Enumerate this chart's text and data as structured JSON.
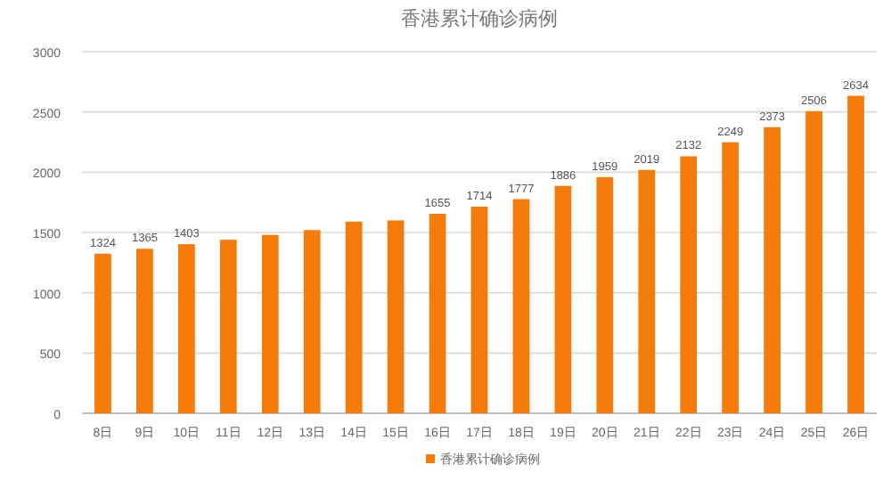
{
  "chart_data": {
    "type": "bar",
    "title": "香港累计确诊病例",
    "categories": [
      "8日",
      "9日",
      "10日",
      "11日",
      "12日",
      "13日",
      "14日",
      "15日",
      "16日",
      "17日",
      "18日",
      "19日",
      "20日",
      "21日",
      "22日",
      "23日",
      "24日",
      "25日",
      "26日"
    ],
    "series": [
      {
        "name": "香港累计确诊病例",
        "color": "#f57c0a",
        "values": [
          1324,
          1365,
          1403,
          1440,
          1480,
          1520,
          1590,
          1600,
          1655,
          1714,
          1777,
          1886,
          1959,
          2019,
          2132,
          2249,
          2373,
          2506,
          2634
        ],
        "value_labels": [
          "1324",
          "1365",
          "1403",
          null,
          null,
          null,
          null,
          null,
          "1655",
          "1714",
          "1777",
          "1886",
          "1959",
          "2019",
          "2132",
          "2249",
          "2373",
          "2506",
          "2634"
        ]
      }
    ],
    "ylim": [
      0,
      3000
    ],
    "yticks": [
      0,
      500,
      1000,
      1500,
      2000,
      2500,
      3000
    ],
    "grid": "y",
    "legend": "bottom"
  }
}
